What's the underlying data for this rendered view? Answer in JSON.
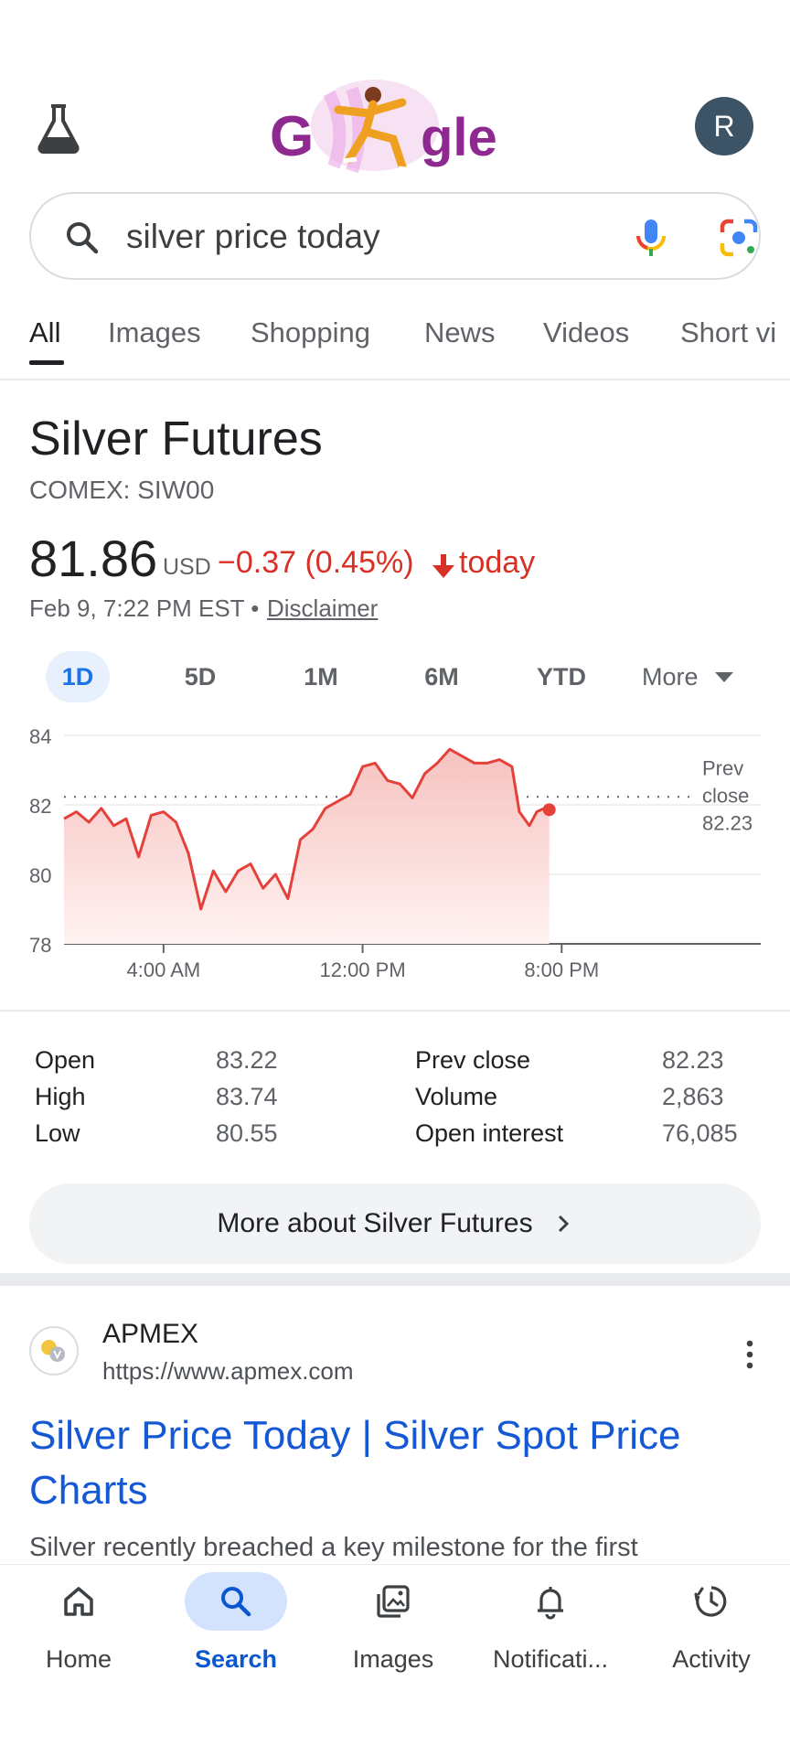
{
  "header": {
    "labs_icon": "flask-icon",
    "doodle_alt": "Google",
    "avatar_initial": "R"
  },
  "search": {
    "query": "silver price today",
    "icons": [
      "search-icon",
      "mic-icon",
      "lens-icon"
    ]
  },
  "tabs": [
    {
      "label": "All",
      "active": true
    },
    {
      "label": "Images"
    },
    {
      "label": "Shopping"
    },
    {
      "label": "News"
    },
    {
      "label": "Videos"
    },
    {
      "label": "Short vi"
    }
  ],
  "quote": {
    "title": "Silver Futures",
    "ticker": "COMEX: SIW00",
    "price": "81.86",
    "currency": "USD",
    "change": "−0.37 (0.45%)",
    "today": "today",
    "date": "Feb 9, 7:22 PM EST •",
    "disclaimer": "Disclaimer",
    "colors": {
      "down": "#d93025",
      "accent": "#1a73e8"
    }
  },
  "ranges": {
    "items": [
      "1D",
      "5D",
      "1M",
      "6M",
      "YTD"
    ],
    "active": "1D",
    "more": "More"
  },
  "chart_data": {
    "type": "area",
    "x_ticks": [
      "4:00 AM",
      "12:00 PM",
      "8:00 PM"
    ],
    "y_ticks": [
      84,
      82,
      80,
      78
    ],
    "ylim": [
      78,
      84
    ],
    "prev_close": {
      "label_lines": [
        "Prev",
        "close",
        "82.23"
      ],
      "value": 82.23
    },
    "x_hours": [
      0,
      0.5,
      1.0,
      1.5,
      2.0,
      2.5,
      3.0,
      3.5,
      4.0,
      4.5,
      5.0,
      5.5,
      6.0,
      6.5,
      7.0,
      7.5,
      8.0,
      8.5,
      9.0,
      9.5,
      10.0,
      10.5,
      11.0,
      11.5,
      12.0,
      12.5,
      13.0,
      13.5,
      14.0,
      14.5,
      15.0,
      15.5,
      16.0,
      16.5,
      17.0,
      17.5,
      18.0,
      18.3,
      18.7,
      19.0,
      19.3,
      19.5
    ],
    "values": [
      81.6,
      81.8,
      81.5,
      81.9,
      81.4,
      81.6,
      80.5,
      81.7,
      81.8,
      81.5,
      80.6,
      79.0,
      80.1,
      79.5,
      80.1,
      80.3,
      79.6,
      80.0,
      79.3,
      81.0,
      81.3,
      81.9,
      82.1,
      82.3,
      83.1,
      83.2,
      82.7,
      82.6,
      82.2,
      82.9,
      83.2,
      83.6,
      83.4,
      83.2,
      83.2,
      83.3,
      83.1,
      81.8,
      81.4,
      81.8,
      81.9,
      81.86
    ],
    "x_range_hours": [
      -4,
      24
    ],
    "colors": {
      "line": "#e5413a",
      "fill_top": "#f6c2bf",
      "fill_bottom": "#fff3f2"
    }
  },
  "stats": {
    "left": [
      {
        "label": "Open",
        "value": "83.22"
      },
      {
        "label": "High",
        "value": "83.74"
      },
      {
        "label": "Low",
        "value": "80.55"
      }
    ],
    "right": [
      {
        "label": "Prev close",
        "value": "82.23"
      },
      {
        "label": "Volume",
        "value": "2,863"
      },
      {
        "label": "Open interest",
        "value": "76,085"
      }
    ]
  },
  "more_button": "More about Silver Futures",
  "result": {
    "site_name": "APMEX",
    "url": "https://www.apmex.com",
    "title": "Silver Price Today | Silver Spot Price Charts",
    "snippet": "Silver recently breached a key milestone for the first"
  },
  "bottom_nav": [
    {
      "label": "Home",
      "icon": "home-icon"
    },
    {
      "label": "Search",
      "icon": "search-icon",
      "active": true
    },
    {
      "label": "Images",
      "icon": "images-icon"
    },
    {
      "label": "Notificati...",
      "icon": "bell-icon"
    },
    {
      "label": "Activity",
      "icon": "activity-icon"
    }
  ]
}
